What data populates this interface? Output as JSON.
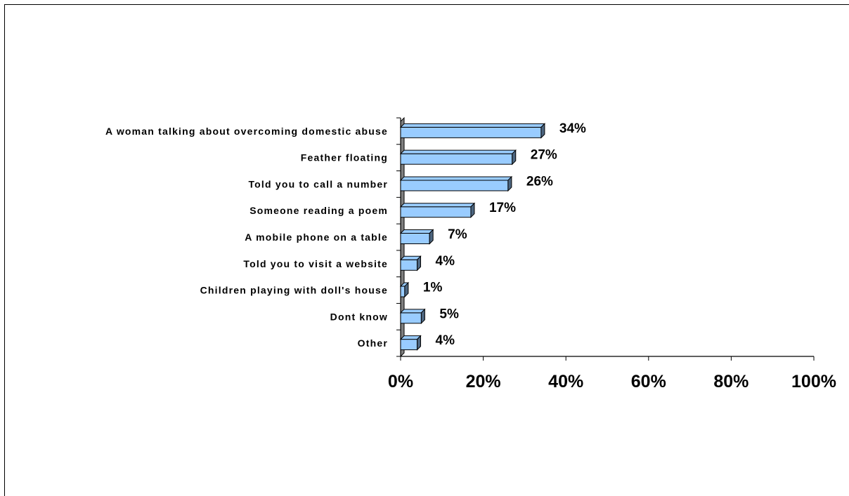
{
  "chart_data": {
    "type": "bar",
    "orientation": "horizontal",
    "categories": [
      "A woman talking about overcoming domestic abuse",
      "Feather floating",
      "Told you to call a number",
      "Someone reading a poem",
      "A mobile phone on a table",
      "Told you to visit a website",
      "Children playing with doll's house",
      "Dont know",
      "Other"
    ],
    "values": [
      34,
      27,
      26,
      17,
      7,
      4,
      1,
      5,
      4
    ],
    "value_labels": [
      "34%",
      "27%",
      "26%",
      "17%",
      "7%",
      "4%",
      "1%",
      "5%",
      "4%"
    ],
    "xlim": [
      0,
      100
    ],
    "x_ticks": [
      "0%",
      "20%",
      "40%",
      "60%",
      "80%",
      "100%"
    ],
    "grid": false,
    "legend": "none",
    "bar_color": "#99ccff",
    "bar_side_color": "#4d6680",
    "bar_outline_color": "#000000"
  }
}
